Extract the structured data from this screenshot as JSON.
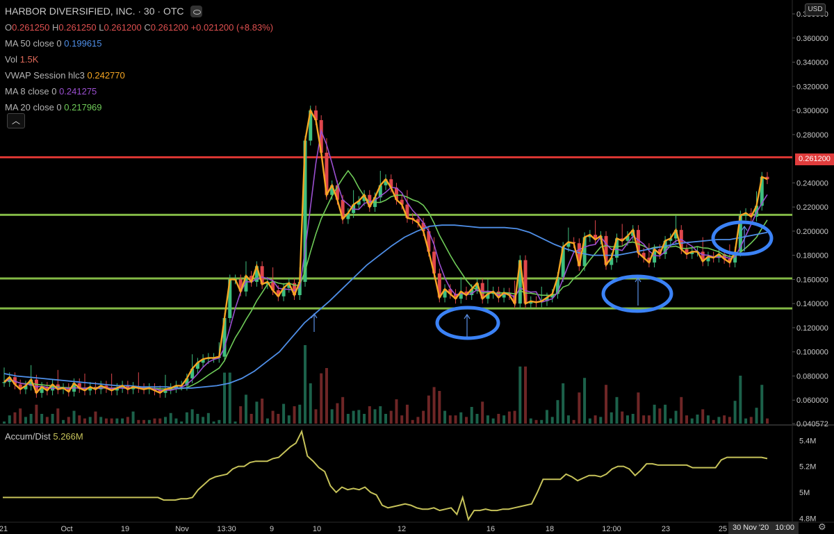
{
  "chart_data": {
    "type": "candlestick",
    "symbol": "HARBOR DIVERSIFIED, INC.",
    "interval": "30",
    "exchange": "OTC",
    "currency": "USD",
    "ohlc": {
      "open": "0.261250",
      "high": "0.261250",
      "low": "0.261200",
      "close": "0.261200",
      "change": "+0.021200 (+8.83%)"
    },
    "indicators": [
      {
        "label": "MA 50 close 0",
        "value": "0.199615",
        "color": "#4f8fe8"
      },
      {
        "label": "Vol",
        "value": "1.5K",
        "color": "#e06a5a"
      },
      {
        "label": "VWAP Session hlc3",
        "value": "0.242770",
        "color": "#f5a623"
      },
      {
        "label": "MA 8 close 0",
        "value": "0.241275",
        "color": "#9b4fd0"
      },
      {
        "label": "MA 20 close 0",
        "value": "0.217969",
        "color": "#6fcb58"
      }
    ],
    "y_axis": {
      "min": 0.040572,
      "max": 0.38,
      "ticks": [
        "0.380000",
        "0.360000",
        "0.340000",
        "0.320000",
        "0.300000",
        "0.280000",
        "0.240000",
        "0.220000",
        "0.200000",
        "0.180000",
        "0.160000",
        "0.140000",
        "0.120000",
        "0.100000",
        "0.080000",
        "0.060000",
        "0.040572"
      ]
    },
    "x_axis_ticks": [
      "21",
      "Oct",
      "19",
      "Nov",
      "13:30",
      "9",
      "10",
      "12",
      "16",
      "18",
      "12:00",
      "23",
      "25",
      "30 Nov '20",
      "10:00"
    ],
    "last_price": "0.261200",
    "horizontal_levels": [
      {
        "value": 0.2612,
        "color": "#e53935"
      },
      {
        "value": 0.2135,
        "color": "#8bc34a"
      },
      {
        "value": 0.1608,
        "color": "#8bc34a"
      },
      {
        "value": 0.136,
        "color": "#8bc34a"
      }
    ],
    "close_series": [
      0.075,
      0.079,
      0.073,
      0.069,
      0.072,
      0.077,
      0.066,
      0.071,
      0.068,
      0.073,
      0.069,
      0.07,
      0.067,
      0.074,
      0.07,
      0.068,
      0.071,
      0.069,
      0.072,
      0.07,
      0.068,
      0.07,
      0.072,
      0.069,
      0.071,
      0.07,
      0.069,
      0.07,
      0.068,
      0.066,
      0.069,
      0.07,
      0.072,
      0.072,
      0.078,
      0.086,
      0.091,
      0.094,
      0.095,
      0.095,
      0.096,
      0.128,
      0.16,
      0.16,
      0.15,
      0.163,
      0.158,
      0.171,
      0.156,
      0.158,
      0.151,
      0.146,
      0.153,
      0.157,
      0.147,
      0.158,
      0.275,
      0.3,
      0.292,
      0.265,
      0.23,
      0.238,
      0.226,
      0.21,
      0.215,
      0.222,
      0.225,
      0.23,
      0.22,
      0.228,
      0.238,
      0.243,
      0.236,
      0.226,
      0.222,
      0.211,
      0.21,
      0.207,
      0.2,
      0.183,
      0.165,
      0.145,
      0.152,
      0.148,
      0.144,
      0.15,
      0.147,
      0.152,
      0.157,
      0.144,
      0.148,
      0.15,
      0.145,
      0.149,
      0.147,
      0.14,
      0.176,
      0.14,
      0.142,
      0.141,
      0.142,
      0.145,
      0.148,
      0.162,
      0.187,
      0.191,
      0.19,
      0.171,
      0.195,
      0.197,
      0.193,
      0.196,
      0.172,
      0.178,
      0.194,
      0.192,
      0.196,
      0.201,
      0.182,
      0.178,
      0.174,
      0.185,
      0.181,
      0.192,
      0.194,
      0.201,
      0.185,
      0.181,
      0.183,
      0.183,
      0.175,
      0.179,
      0.178,
      0.181,
      0.177,
      0.174,
      0.183,
      0.213,
      0.215,
      0.212,
      0.221,
      0.245,
      0.243
    ],
    "ma50_series": [
      0.082,
      0.08,
      0.079,
      0.078,
      0.077,
      0.076,
      0.075,
      0.074,
      0.073,
      0.072,
      0.072,
      0.071,
      0.071,
      0.071,
      0.07,
      0.07,
      0.071,
      0.072,
      0.074,
      0.078,
      0.084,
      0.092,
      0.1,
      0.112,
      0.124,
      0.133,
      0.142,
      0.152,
      0.162,
      0.172,
      0.18,
      0.188,
      0.195,
      0.2,
      0.204,
      0.205,
      0.205,
      0.204,
      0.203,
      0.203,
      0.203,
      0.202,
      0.199,
      0.194,
      0.189,
      0.185,
      0.182,
      0.18,
      0.18,
      0.18,
      0.182,
      0.184,
      0.186,
      0.188,
      0.19,
      0.191,
      0.192,
      0.193,
      0.193,
      0.195,
      0.197,
      0.199
    ],
    "accum_dist": {
      "label": "Accum/Dist",
      "value": "5.266M",
      "ticks": [
        "5.4M",
        "5.2M",
        "5M",
        "4.8M"
      ],
      "min": 4.78,
      "max": 5.45,
      "series": [
        4.96,
        4.96,
        4.96,
        4.96,
        4.96,
        4.96,
        4.96,
        4.96,
        4.96,
        4.96,
        4.96,
        4.96,
        4.96,
        4.96,
        4.96,
        4.96,
        4.96,
        4.96,
        4.96,
        4.96,
        4.96,
        4.96,
        4.96,
        4.96,
        4.96,
        4.96,
        4.96,
        4.96,
        4.94,
        4.94,
        4.94,
        4.95,
        4.95,
        4.96,
        5.02,
        5.06,
        5.1,
        5.12,
        5.13,
        5.14,
        5.18,
        5.2,
        5.2,
        5.23,
        5.24,
        5.24,
        5.24,
        5.26,
        5.27,
        5.31,
        5.35,
        5.38,
        5.47,
        5.28,
        5.24,
        5.19,
        5.16,
        5.05,
        5.0,
        5.04,
        5.02,
        5.03,
        5.02,
        5.04,
        5.0,
        4.98,
        4.9,
        4.88,
        4.89,
        4.9,
        4.91,
        4.9,
        4.88,
        4.87,
        4.87,
        4.88,
        4.86,
        4.87,
        4.88,
        4.83,
        4.96,
        4.79,
        4.86,
        4.86,
        4.87,
        4.86,
        4.86,
        4.87,
        4.87,
        4.88,
        4.89,
        4.9,
        4.91,
        5.0,
        5.1,
        5.1,
        5.1,
        5.1,
        5.14,
        5.12,
        5.09,
        5.11,
        5.13,
        5.13,
        5.12,
        5.14,
        5.18,
        5.2,
        5.2,
        5.18,
        5.13,
        5.17,
        5.22,
        5.22,
        5.21,
        5.21,
        5.21,
        5.21,
        5.21,
        5.21,
        5.19,
        5.19,
        5.19,
        5.19,
        5.19,
        5.25,
        5.27,
        5.27,
        5.27,
        5.27,
        5.27,
        5.27,
        5.27,
        5.26
      ]
    }
  }
}
